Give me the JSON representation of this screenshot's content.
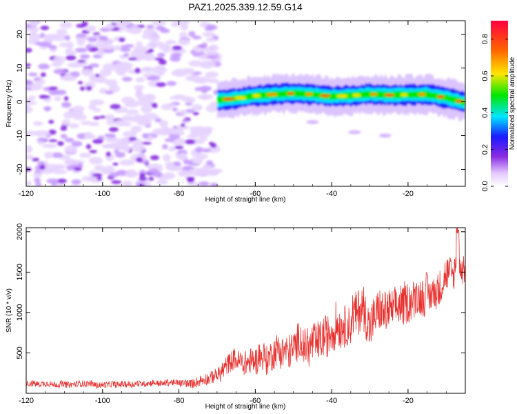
{
  "figure_title": "PAZ1.2025.339.12.59.G14",
  "colors": {
    "snr_line": "#e8302e",
    "axis": "#000000",
    "colorbar_stops": [
      "#ffffff",
      "#e3c8ff",
      "#8a2be2",
      "#1a1aff",
      "#00e5ff",
      "#00e600",
      "#ffe600",
      "#ff6600",
      "#ff0040"
    ]
  },
  "chart_data": [
    {
      "type": "heatmap",
      "title": "PAZ1.2025.339.12.59.G14",
      "xlabel": "Height of straight line (km)",
      "ylabel": "Frequency (Hz)",
      "xlim": [
        -120,
        -5
      ],
      "ylim": [
        -25,
        24
      ],
      "xticks": [
        -120,
        -100,
        -80,
        -60,
        -40,
        -20
      ],
      "yticks": [
        -20,
        -10,
        0,
        10,
        20
      ],
      "colorbar": {
        "label": "Normalized spectral amplitude",
        "range": [
          0.0,
          0.9
        ],
        "ticks": [
          "0.0",
          "0.2",
          "0.4",
          "0.6",
          "0.8"
        ]
      },
      "description_points": {
        "noise_region_km": [
          -120,
          -70
        ],
        "signal_start_km": -70,
        "signal_ridge": {
          "x": [
            -70,
            -65,
            -60,
            -55,
            -50,
            -45,
            -40,
            -35,
            -30,
            -25,
            -20,
            -15,
            -10,
            -5
          ],
          "freq_hz": [
            0.5,
            1.0,
            1.8,
            2.2,
            2.5,
            2.2,
            1.6,
            1.8,
            2.3,
            2.0,
            2.1,
            2.2,
            1.2,
            -0.3
          ]
        },
        "secondary_blobs": [
          {
            "x": -45,
            "freq_hz": -6
          },
          {
            "x": -34,
            "freq_hz": -9
          },
          {
            "x": -26,
            "freq_hz": -10
          }
        ]
      }
    },
    {
      "type": "line",
      "xlabel": "Height of straight line (km)",
      "ylabel": "SNR (10 * v/v)",
      "xlim": [
        -120,
        -5
      ],
      "ylim": [
        0,
        2050
      ],
      "xticks": [
        -120,
        -100,
        -80,
        -60,
        -40,
        -20
      ],
      "yticks": [
        500,
        1000,
        1500,
        2000
      ],
      "series": [
        {
          "name": "SNR",
          "envelope": {
            "x": [
              -120,
              -110,
              -100,
              -90,
              -80,
              -72,
              -68,
              -65,
              -60,
              -55,
              -50,
              -45,
              -40,
              -35,
              -32,
              -30,
              -25,
              -20,
              -15,
              -10,
              -8,
              -7,
              -6,
              -5
            ],
            "mean": [
              120,
              115,
              110,
              125,
              125,
              150,
              330,
              380,
              420,
              480,
              560,
              650,
              780,
              880,
              1050,
              900,
              980,
              1150,
              1250,
              1380,
              1450,
              1750,
              1500,
              1500
            ],
            "amplitude": [
              60,
              60,
              60,
              60,
              65,
              120,
              180,
              220,
              260,
              300,
              350,
              380,
              400,
              420,
              450,
              420,
              400,
              380,
              360,
              330,
              300,
              300,
              280,
              250
            ]
          },
          "peak": {
            "x": -7,
            "y": 2080
          }
        }
      ]
    }
  ]
}
